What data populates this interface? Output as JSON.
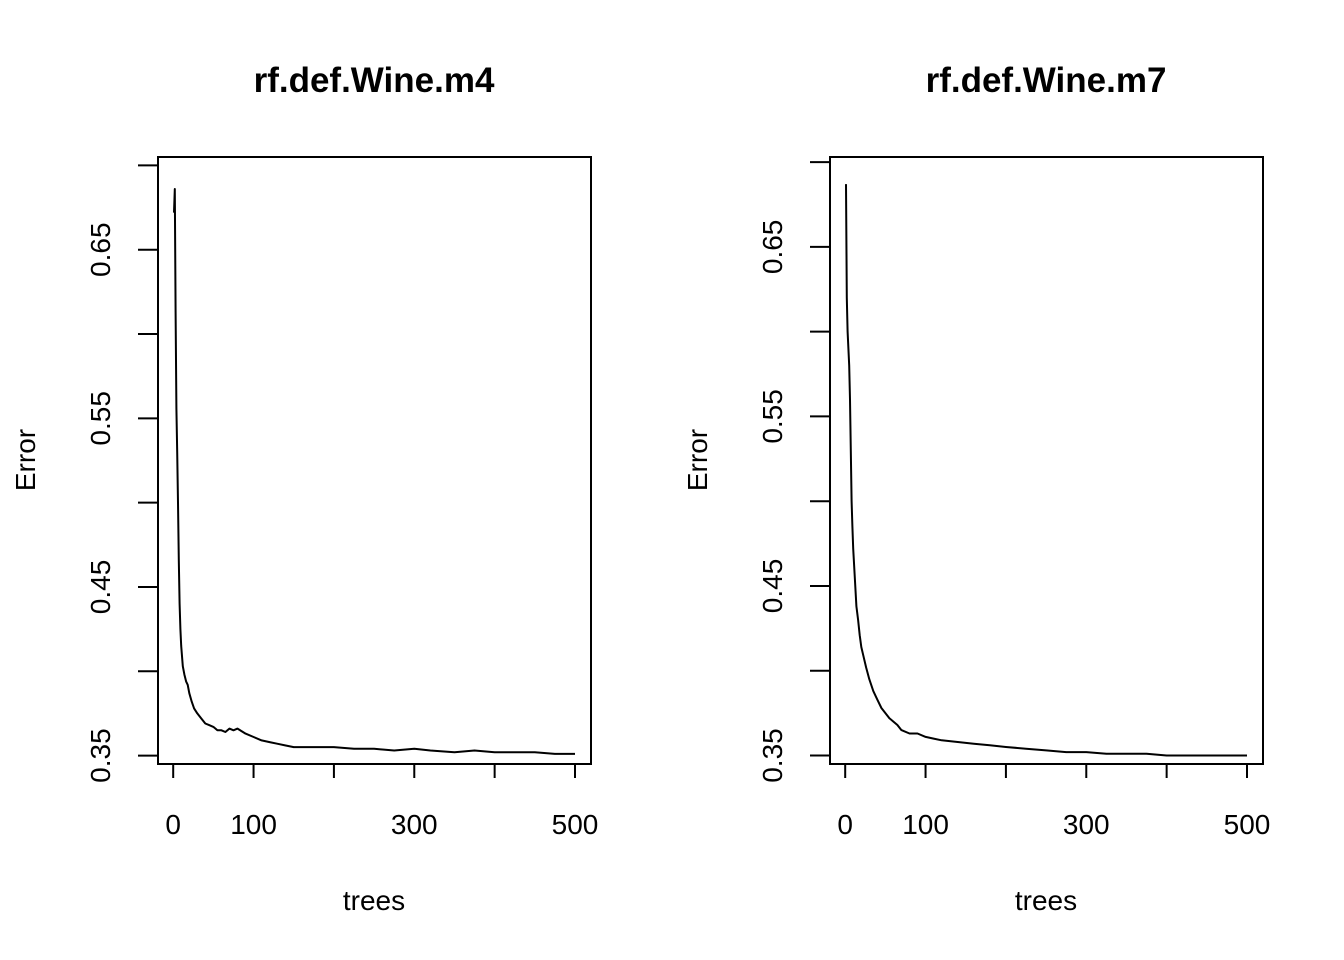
{
  "chart_data": [
    {
      "type": "line",
      "title": "rf.def.Wine.m4",
      "xlabel": "trees",
      "ylabel": "Error",
      "xlim": [
        1,
        500
      ],
      "ylim": [
        0.345,
        0.705
      ],
      "x_ticks": [
        0,
        100,
        200,
        300,
        400,
        500
      ],
      "x_tick_labels": [
        "0",
        "100",
        "",
        "300",
        "",
        "500"
      ],
      "y_ticks": [
        0.35,
        0.4,
        0.45,
        0.5,
        0.55,
        0.6,
        0.65,
        0.7
      ],
      "y_tick_labels": [
        "0.35",
        "",
        "0.45",
        "",
        "0.55",
        "",
        "0.65",
        ""
      ],
      "legend": "none",
      "grid": false,
      "series": [
        {
          "color": "#000000",
          "x": [
            1,
            2,
            3,
            4,
            5,
            6,
            7,
            8,
            9,
            10,
            12,
            14,
            16,
            18,
            20,
            23,
            26,
            30,
            35,
            40,
            45,
            50,
            55,
            60,
            65,
            70,
            75,
            80,
            90,
            100,
            110,
            120,
            130,
            140,
            150,
            175,
            200,
            225,
            250,
            275,
            300,
            320,
            350,
            375,
            400,
            425,
            450,
            475,
            500
          ],
          "y": [
            0.672,
            0.686,
            0.613,
            0.556,
            0.53,
            0.5,
            0.466,
            0.44,
            0.425,
            0.415,
            0.403,
            0.398,
            0.394,
            0.392,
            0.387,
            0.382,
            0.378,
            0.375,
            0.372,
            0.369,
            0.368,
            0.367,
            0.365,
            0.365,
            0.364,
            0.366,
            0.365,
            0.366,
            0.363,
            0.361,
            0.359,
            0.358,
            0.357,
            0.356,
            0.355,
            0.355,
            0.355,
            0.354,
            0.354,
            0.353,
            0.354,
            0.353,
            0.352,
            0.353,
            0.352,
            0.352,
            0.352,
            0.351,
            0.351
          ]
        }
      ]
    },
    {
      "type": "line",
      "title": "rf.def.Wine.m7",
      "xlabel": "trees",
      "ylabel": "Error",
      "xlim": [
        1,
        500
      ],
      "ylim": [
        0.345,
        0.703
      ],
      "x_ticks": [
        0,
        100,
        200,
        300,
        400,
        500
      ],
      "x_tick_labels": [
        "0",
        "100",
        "",
        "300",
        "",
        "500"
      ],
      "y_ticks": [
        0.35,
        0.4,
        0.45,
        0.5,
        0.55,
        0.6,
        0.65,
        0.7
      ],
      "y_tick_labels": [
        "0.35",
        "",
        "0.45",
        "",
        "0.55",
        "",
        "0.65",
        ""
      ],
      "legend": "none",
      "grid": false,
      "series": [
        {
          "color": "#000000",
          "x": [
            1,
            2,
            3,
            4,
            5,
            6,
            7,
            8,
            9,
            10,
            12,
            14,
            16,
            18,
            20,
            23,
            26,
            30,
            35,
            40,
            45,
            50,
            55,
            60,
            65,
            70,
            80,
            90,
            100,
            110,
            120,
            140,
            160,
            180,
            200,
            225,
            250,
            275,
            300,
            325,
            350,
            375,
            400,
            425,
            450,
            475,
            500
          ],
          "y": [
            0.687,
            0.62,
            0.6,
            0.59,
            0.58,
            0.56,
            0.53,
            0.5,
            0.485,
            0.472,
            0.455,
            0.438,
            0.43,
            0.421,
            0.414,
            0.408,
            0.402,
            0.395,
            0.388,
            0.383,
            0.378,
            0.375,
            0.372,
            0.37,
            0.368,
            0.365,
            0.363,
            0.363,
            0.361,
            0.36,
            0.359,
            0.358,
            0.357,
            0.356,
            0.355,
            0.354,
            0.353,
            0.352,
            0.352,
            0.351,
            0.351,
            0.351,
            0.35,
            0.35,
            0.35,
            0.35,
            0.35
          ]
        }
      ]
    }
  ]
}
